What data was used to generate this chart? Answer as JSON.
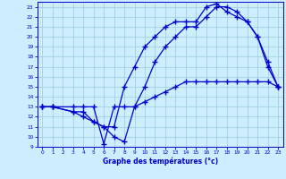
{
  "title": "Graphe des températures (°c)",
  "bg_color": "#cceeff",
  "line_color": "#0000cc",
  "grid_color": "#99ccdd",
  "xlim": [
    -0.5,
    23.5
  ],
  "ylim": [
    9,
    23.5
  ],
  "xticks": [
    0,
    1,
    2,
    3,
    4,
    5,
    6,
    7,
    8,
    9,
    10,
    11,
    12,
    13,
    14,
    15,
    16,
    17,
    18,
    19,
    20,
    21,
    22,
    23
  ],
  "yticks": [
    9,
    10,
    11,
    12,
    13,
    14,
    15,
    16,
    17,
    18,
    19,
    20,
    21,
    22,
    23
  ],
  "line1_x": [
    0,
    1,
    3,
    4,
    5,
    6,
    7,
    8,
    9,
    10,
    11,
    12,
    13,
    14,
    15,
    16,
    17,
    18,
    19,
    20,
    21,
    22,
    23
  ],
  "line1_y": [
    13,
    13,
    13,
    13,
    13,
    9.3,
    13,
    13,
    13,
    13.5,
    14,
    14.5,
    15,
    15.5,
    15.5,
    15.5,
    15.5,
    15.5,
    15.5,
    15.5,
    15.5,
    15.5,
    15
  ],
  "line2_x": [
    0,
    1,
    3,
    4,
    5,
    6,
    7,
    8,
    9,
    10,
    11,
    12,
    13,
    14,
    15,
    16,
    17,
    18,
    19,
    20,
    21,
    22,
    23
  ],
  "line2_y": [
    13,
    13,
    12.5,
    12,
    11.5,
    11,
    10,
    9.5,
    13,
    15,
    17.5,
    19,
    20,
    21,
    21,
    22,
    23,
    23,
    22.5,
    21.5,
    20,
    17,
    15
  ],
  "line3_x": [
    0,
    1,
    3,
    4,
    5,
    6,
    7,
    8,
    9,
    10,
    11,
    12,
    13,
    14,
    15,
    16,
    17,
    18,
    19,
    20,
    21,
    22,
    23
  ],
  "line3_y": [
    13,
    13,
    12.5,
    12.5,
    11.5,
    11,
    11,
    15,
    17,
    19,
    20,
    21,
    21.5,
    21.5,
    21.5,
    23,
    23.3,
    22.5,
    22,
    21.5,
    20,
    17.5,
    15
  ]
}
